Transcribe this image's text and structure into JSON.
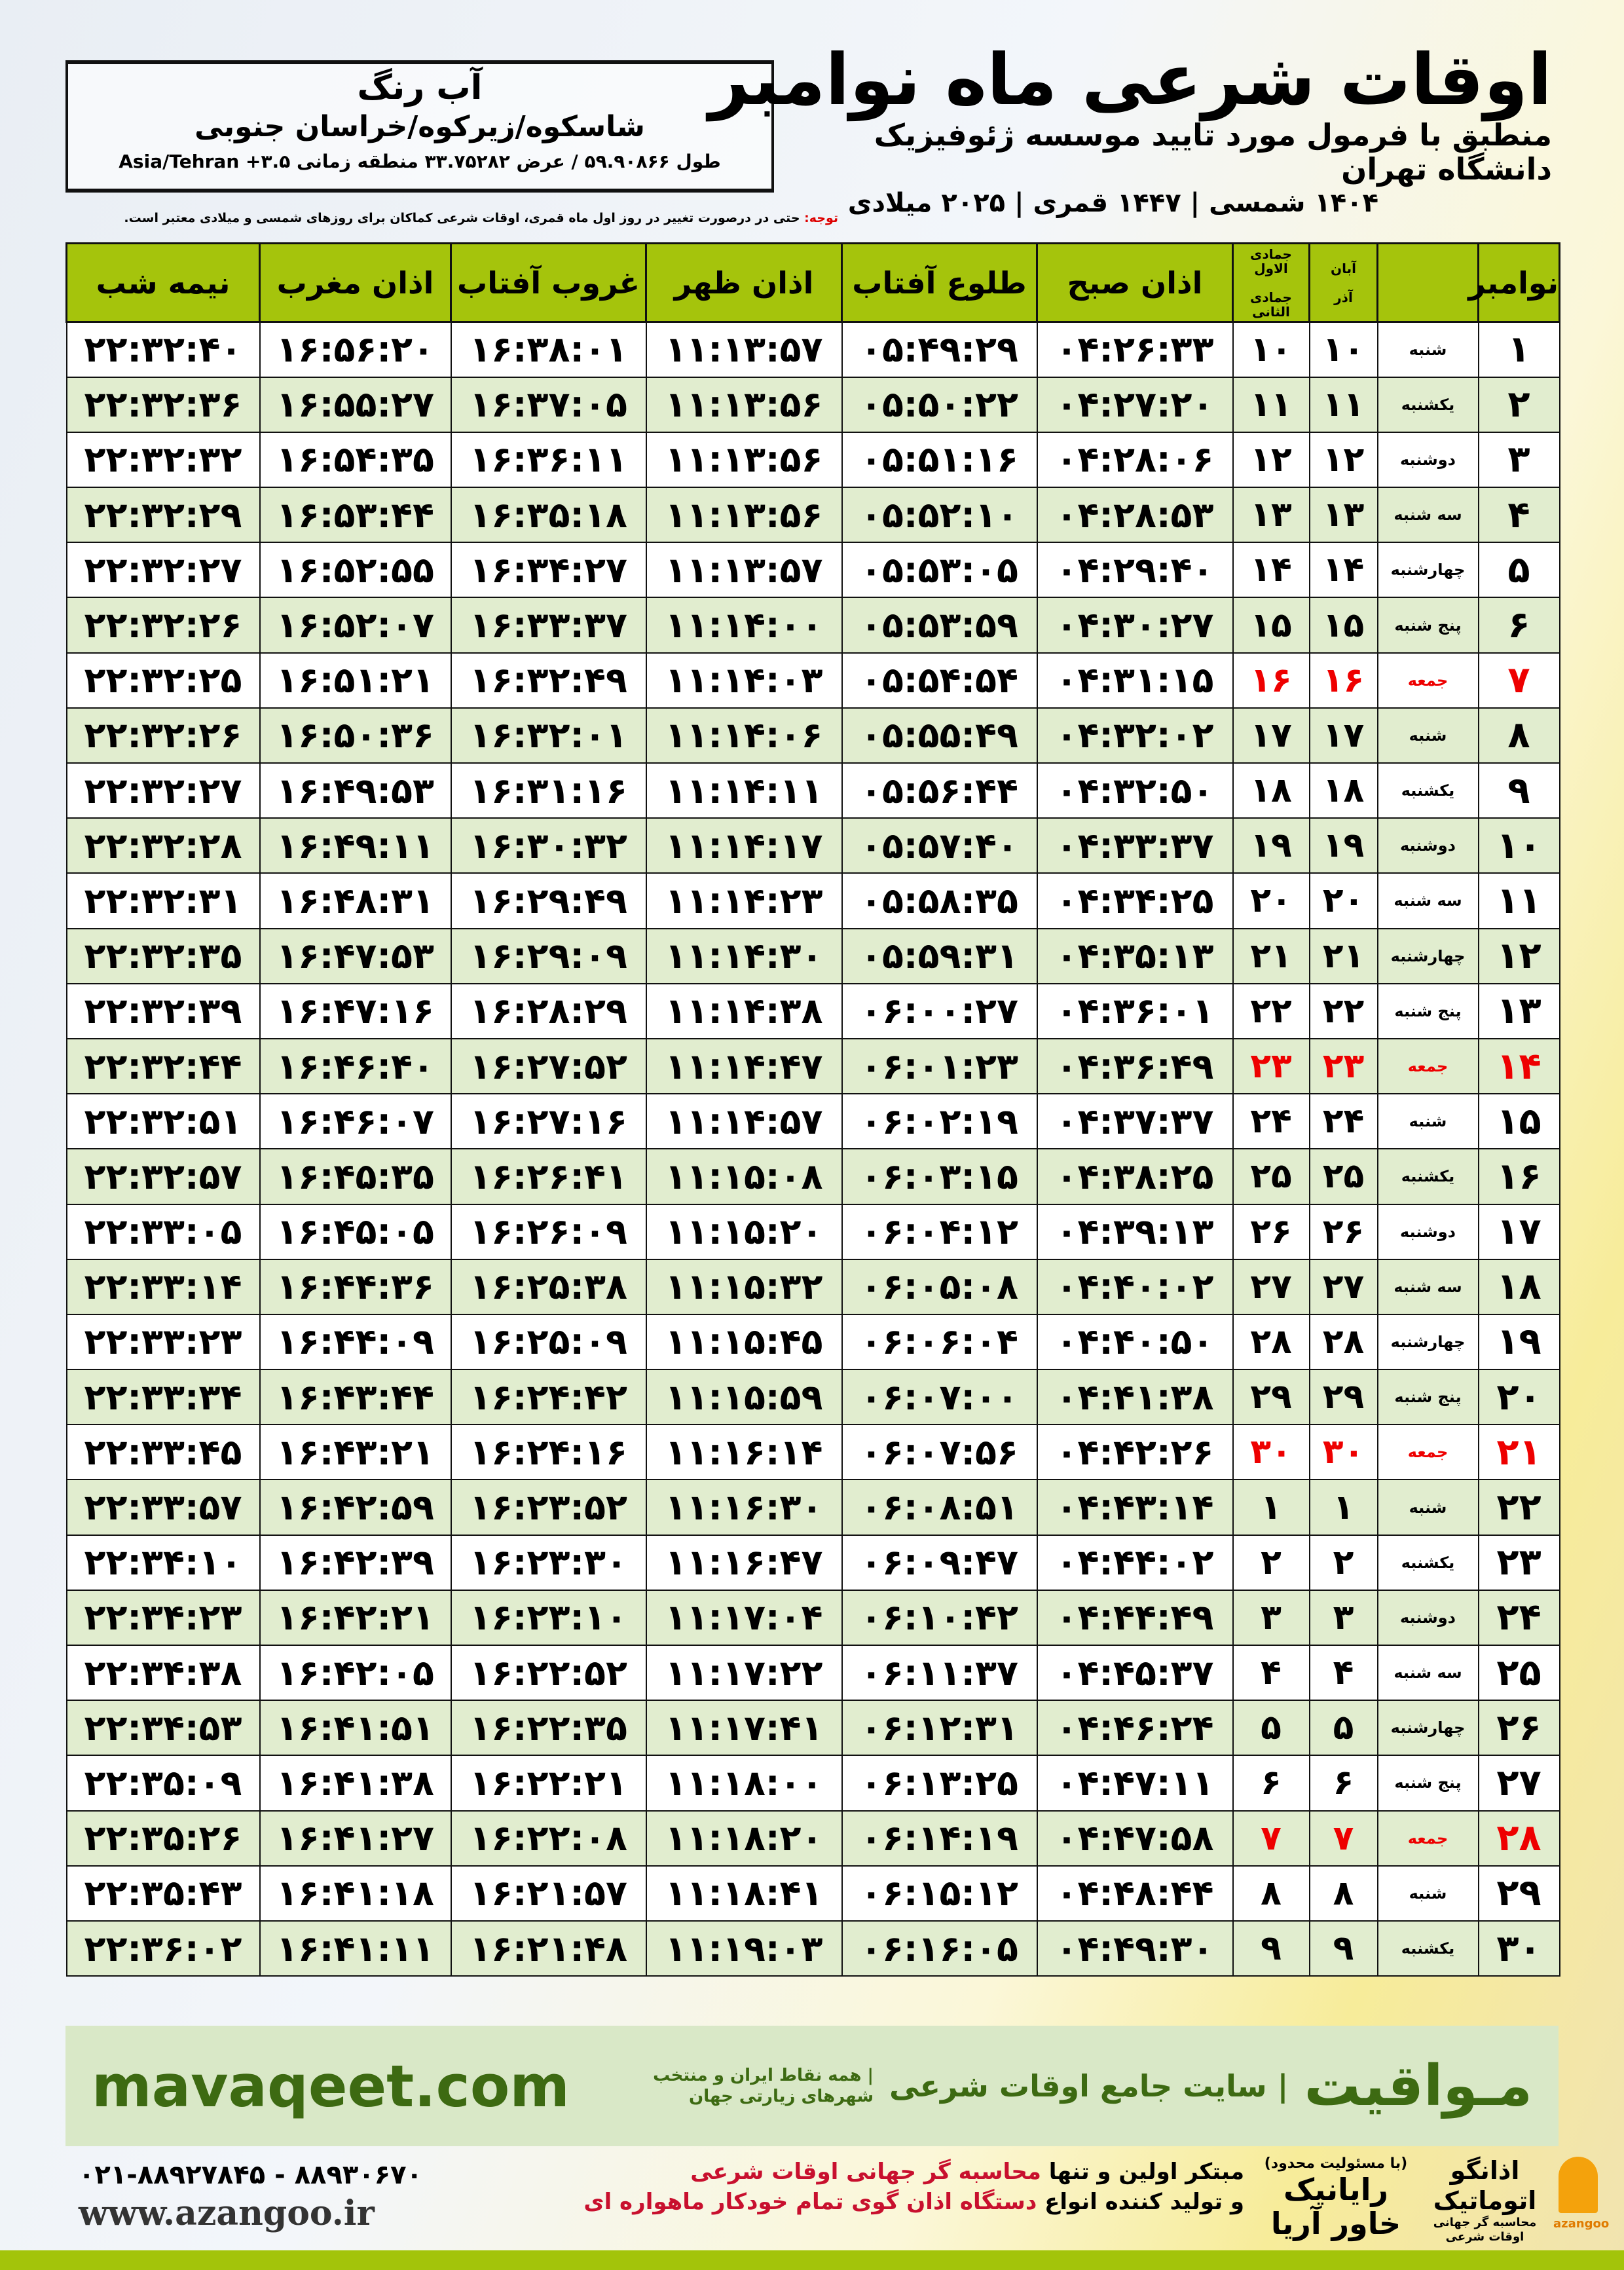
{
  "info": {
    "city": "آب رنگ",
    "region": "شاسکوه/زیرکوه/خراسان جنوبی",
    "coords": "طول ۵۹.۹۰۸۶۶ / عرض ۳۳.۷۵۲۸۲ منطقه زمانی Asia/Tehran +۳.۵"
  },
  "header": {
    "title": "اوقات شرعی ماه نوامبر",
    "subtitle": "منطبق با فرمول مورد تایید موسسه ژئوفیزیک دانشگاه تهران",
    "years": "۱۴۰۴ شمسی | ۱۴۴۷ قمری | ۲۰۲۵ میلادی"
  },
  "note": {
    "label": "توجه:",
    "text": " حتی در درصورت تغییر در روز اول ماه قمری، اوقات شرعی کماکان برای روزهای شمسی و میلادی معتبر است."
  },
  "table": {
    "headers": {
      "month": "نوامبر",
      "shamsi_top": "آبان",
      "shamsi_bottom": "آذر",
      "hijri_top": "جمادی الاول",
      "hijri_bottom": "جمادی الثانی",
      "sobh": "اذان صبح",
      "tolu": "طلوع آفتاب",
      "zohr": "اذان ظهر",
      "ghorub": "غروب آفتاب",
      "maghrib": "اذان مغرب",
      "nime": "نیمه شب"
    },
    "rows": [
      [
        "۱",
        "شنبه",
        "۱۰",
        "۱۰",
        "۰۴:۲۶:۳۳",
        "۰۵:۴۹:۲۹",
        "۱۱:۱۳:۵۷",
        "۱۶:۳۸:۰۱",
        "۱۶:۵۶:۲۰",
        "۲۲:۳۲:۴۰"
      ],
      [
        "۲",
        "یکشنبه",
        "۱۱",
        "۱۱",
        "۰۴:۲۷:۲۰",
        "۰۵:۵۰:۲۲",
        "۱۱:۱۳:۵۶",
        "۱۶:۳۷:۰۵",
        "۱۶:۵۵:۲۷",
        "۲۲:۳۲:۳۶"
      ],
      [
        "۳",
        "دوشنبه",
        "۱۲",
        "۱۲",
        "۰۴:۲۸:۰۶",
        "۰۵:۵۱:۱۶",
        "۱۱:۱۳:۵۶",
        "۱۶:۳۶:۱۱",
        "۱۶:۵۴:۳۵",
        "۲۲:۳۲:۳۲"
      ],
      [
        "۴",
        "سه شنبه",
        "۱۳",
        "۱۳",
        "۰۴:۲۸:۵۳",
        "۰۵:۵۲:۱۰",
        "۱۱:۱۳:۵۶",
        "۱۶:۳۵:۱۸",
        "۱۶:۵۳:۴۴",
        "۲۲:۳۲:۲۹"
      ],
      [
        "۵",
        "چهارشنبه",
        "۱۴",
        "۱۴",
        "۰۴:۲۹:۴۰",
        "۰۵:۵۳:۰۵",
        "۱۱:۱۳:۵۷",
        "۱۶:۳۴:۲۷",
        "۱۶:۵۲:۵۵",
        "۲۲:۳۲:۲۷"
      ],
      [
        "۶",
        "پنج شنبه",
        "۱۵",
        "۱۵",
        "۰۴:۳۰:۲۷",
        "۰۵:۵۳:۵۹",
        "۱۱:۱۴:۰۰",
        "۱۶:۳۳:۳۷",
        "۱۶:۵۲:۰۷",
        "۲۲:۳۲:۲۶"
      ],
      [
        "۷",
        "جمعه",
        "۱۶",
        "۱۶",
        "۰۴:۳۱:۱۵",
        "۰۵:۵۴:۵۴",
        "۱۱:۱۴:۰۳",
        "۱۶:۳۲:۴۹",
        "۱۶:۵۱:۲۱",
        "۲۲:۳۲:۲۵"
      ],
      [
        "۸",
        "شنبه",
        "۱۷",
        "۱۷",
        "۰۴:۳۲:۰۲",
        "۰۵:۵۵:۴۹",
        "۱۱:۱۴:۰۶",
        "۱۶:۳۲:۰۱",
        "۱۶:۵۰:۳۶",
        "۲۲:۳۲:۲۶"
      ],
      [
        "۹",
        "یکشنبه",
        "۱۸",
        "۱۸",
        "۰۴:۳۲:۵۰",
        "۰۵:۵۶:۴۴",
        "۱۱:۱۴:۱۱",
        "۱۶:۳۱:۱۶",
        "۱۶:۴۹:۵۳",
        "۲۲:۳۲:۲۷"
      ],
      [
        "۱۰",
        "دوشنبه",
        "۱۹",
        "۱۹",
        "۰۴:۳۳:۳۷",
        "۰۵:۵۷:۴۰",
        "۱۱:۱۴:۱۷",
        "۱۶:۳۰:۳۲",
        "۱۶:۴۹:۱۱",
        "۲۲:۳۲:۲۸"
      ],
      [
        "۱۱",
        "سه شنبه",
        "۲۰",
        "۲۰",
        "۰۴:۳۴:۲۵",
        "۰۵:۵۸:۳۵",
        "۱۱:۱۴:۲۳",
        "۱۶:۲۹:۴۹",
        "۱۶:۴۸:۳۱",
        "۲۲:۳۲:۳۱"
      ],
      [
        "۱۲",
        "چهارشنبه",
        "۲۱",
        "۲۱",
        "۰۴:۳۵:۱۳",
        "۰۵:۵۹:۳۱",
        "۱۱:۱۴:۳۰",
        "۱۶:۲۹:۰۹",
        "۱۶:۴۷:۵۳",
        "۲۲:۳۲:۳۵"
      ],
      [
        "۱۳",
        "پنج شنبه",
        "۲۲",
        "۲۲",
        "۰۴:۳۶:۰۱",
        "۰۶:۰۰:۲۷",
        "۱۱:۱۴:۳۸",
        "۱۶:۲۸:۲۹",
        "۱۶:۴۷:۱۶",
        "۲۲:۳۲:۳۹"
      ],
      [
        "۱۴",
        "جمعه",
        "۲۳",
        "۲۳",
        "۰۴:۳۶:۴۹",
        "۰۶:۰۱:۲۳",
        "۱۱:۱۴:۴۷",
        "۱۶:۲۷:۵۲",
        "۱۶:۴۶:۴۰",
        "۲۲:۳۲:۴۴"
      ],
      [
        "۱۵",
        "شنبه",
        "۲۴",
        "۲۴",
        "۰۴:۳۷:۳۷",
        "۰۶:۰۲:۱۹",
        "۱۱:۱۴:۵۷",
        "۱۶:۲۷:۱۶",
        "۱۶:۴۶:۰۷",
        "۲۲:۳۲:۵۱"
      ],
      [
        "۱۶",
        "یکشنبه",
        "۲۵",
        "۲۵",
        "۰۴:۳۸:۲۵",
        "۰۶:۰۳:۱۵",
        "۱۱:۱۵:۰۸",
        "۱۶:۲۶:۴۱",
        "۱۶:۴۵:۳۵",
        "۲۲:۳۲:۵۷"
      ],
      [
        "۱۷",
        "دوشنبه",
        "۲۶",
        "۲۶",
        "۰۴:۳۹:۱۳",
        "۰۶:۰۴:۱۲",
        "۱۱:۱۵:۲۰",
        "۱۶:۲۶:۰۹",
        "۱۶:۴۵:۰۵",
        "۲۲:۳۳:۰۵"
      ],
      [
        "۱۸",
        "سه شنبه",
        "۲۷",
        "۲۷",
        "۰۴:۴۰:۰۲",
        "۰۶:۰۵:۰۸",
        "۱۱:۱۵:۳۲",
        "۱۶:۲۵:۳۸",
        "۱۶:۴۴:۳۶",
        "۲۲:۳۳:۱۴"
      ],
      [
        "۱۹",
        "چهارشنبه",
        "۲۸",
        "۲۸",
        "۰۴:۴۰:۵۰",
        "۰۶:۰۶:۰۴",
        "۱۱:۱۵:۴۵",
        "۱۶:۲۵:۰۹",
        "۱۶:۴۴:۰۹",
        "۲۲:۳۳:۲۳"
      ],
      [
        "۲۰",
        "پنج شنبه",
        "۲۹",
        "۲۹",
        "۰۴:۴۱:۳۸",
        "۰۶:۰۷:۰۰",
        "۱۱:۱۵:۵۹",
        "۱۶:۲۴:۴۲",
        "۱۶:۴۳:۴۴",
        "۲۲:۳۳:۳۴"
      ],
      [
        "۲۱",
        "جمعه",
        "۳۰",
        "۳۰",
        "۰۴:۴۲:۲۶",
        "۰۶:۰۷:۵۶",
        "۱۱:۱۶:۱۴",
        "۱۶:۲۴:۱۶",
        "۱۶:۴۳:۲۱",
        "۲۲:۳۳:۴۵"
      ],
      [
        "۲۲",
        "شنبه",
        "۱",
        "۱",
        "۰۴:۴۳:۱۴",
        "۰۶:۰۸:۵۱",
        "۱۱:۱۶:۳۰",
        "۱۶:۲۳:۵۲",
        "۱۶:۴۲:۵۹",
        "۲۲:۳۳:۵۷"
      ],
      [
        "۲۳",
        "یکشنبه",
        "۲",
        "۲",
        "۰۴:۴۴:۰۲",
        "۰۶:۰۹:۴۷",
        "۱۱:۱۶:۴۷",
        "۱۶:۲۳:۳۰",
        "۱۶:۴۲:۳۹",
        "۲۲:۳۴:۱۰"
      ],
      [
        "۲۴",
        "دوشنبه",
        "۳",
        "۳",
        "۰۴:۴۴:۴۹",
        "۰۶:۱۰:۴۲",
        "۱۱:۱۷:۰۴",
        "۱۶:۲۳:۱۰",
        "۱۶:۴۲:۲۱",
        "۲۲:۳۴:۲۳"
      ],
      [
        "۲۵",
        "سه شنبه",
        "۴",
        "۴",
        "۰۴:۴۵:۳۷",
        "۰۶:۱۱:۳۷",
        "۱۱:۱۷:۲۲",
        "۱۶:۲۲:۵۲",
        "۱۶:۴۲:۰۵",
        "۲۲:۳۴:۳۸"
      ],
      [
        "۲۶",
        "چهارشنبه",
        "۵",
        "۵",
        "۰۴:۴۶:۲۴",
        "۰۶:۱۲:۳۱",
        "۱۱:۱۷:۴۱",
        "۱۶:۲۲:۳۵",
        "۱۶:۴۱:۵۱",
        "۲۲:۳۴:۵۳"
      ],
      [
        "۲۷",
        "پنج شنبه",
        "۶",
        "۶",
        "۰۴:۴۷:۱۱",
        "۰۶:۱۳:۲۵",
        "۱۱:۱۸:۰۰",
        "۱۶:۲۲:۲۱",
        "۱۶:۴۱:۳۸",
        "۲۲:۳۵:۰۹"
      ],
      [
        "۲۸",
        "جمعه",
        "۷",
        "۷",
        "۰۴:۴۷:۵۸",
        "۰۶:۱۴:۱۹",
        "۱۱:۱۸:۲۰",
        "۱۶:۲۲:۰۸",
        "۱۶:۴۱:۲۷",
        "۲۲:۳۵:۲۶"
      ],
      [
        "۲۹",
        "شنبه",
        "۸",
        "۸",
        "۰۴:۴۸:۴۴",
        "۰۶:۱۵:۱۲",
        "۱۱:۱۸:۴۱",
        "۱۶:۲۱:۵۷",
        "۱۶:۴۱:۱۸",
        "۲۲:۳۵:۴۳"
      ],
      [
        "۳۰",
        "یکشنبه",
        "۹",
        "۹",
        "۰۴:۴۹:۳۰",
        "۰۶:۱۶:۰۵",
        "۱۱:۱۹:۰۳",
        "۱۶:۲۱:۴۸",
        "۱۶:۴۱:۱۱",
        "۲۲:۳۶:۰۲"
      ]
    ],
    "friday_label": "جمعه"
  },
  "banner": {
    "brand": "مـواقیت",
    "slogan": "| سایت جامع اوقات شرعی",
    "slogan2": "| همه نقاط ایران و منتخب شهرهای زیارتی جهان",
    "site": "mavaqeet.com"
  },
  "footer": {
    "phone": "۰۲۱-۸۸۹۲۷۸۴۵ - ۸۸۹۳۰۶۷۰",
    "www": "www.azangoo.ir",
    "pitch1a": "مبتکر اولین و تنها ",
    "pitch1b": "محاسبه گر جهانی اوقات شرعی",
    "pitch2a": "و تولید کننده انواع ",
    "pitch2b": "دستگاه اذان گوی تمام خودکار ماهواره ای",
    "logo2_sub": "(با مسئولیت محدود)",
    "logo2": "رایانیک خاور آریا",
    "logo1": "اذانگو اتوماتیک",
    "logo1_sub": "محاسبه گر جهانی اوقات شرعی",
    "logo1_en": "azangoo"
  },
  "colors": {
    "header_green": "#a5c40c",
    "row_green": "#e1edcf",
    "friday_red": "#e00000",
    "brand_green": "#3d6a12",
    "banner_bg": "#d9e8c7"
  }
}
